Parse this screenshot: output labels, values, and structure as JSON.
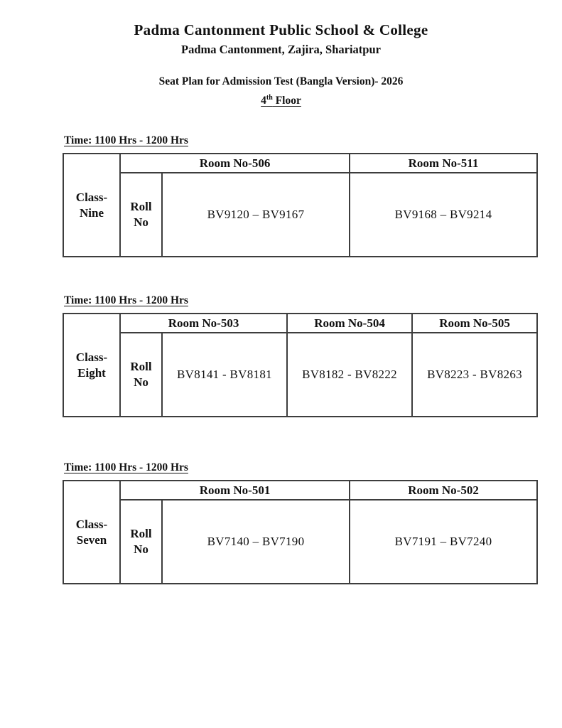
{
  "header": {
    "title": "Padma Cantonment Public School & College",
    "subtitle": "Padma Cantonment, Zajira, Shariatpur",
    "plan_title": "Seat Plan for Admission Test (Bangla Version)- 2026",
    "floor_number": "4",
    "floor_suffix": "th",
    "floor_word": " Floor"
  },
  "sections": [
    {
      "time_label": "Time: 1100 Hrs - 1200 Hrs",
      "class_label": "Class-Nine",
      "roll_label": "Roll No",
      "rooms": [
        "Room No-506",
        "Room No-511"
      ],
      "roll_ranges": [
        "BV9120 – BV9167",
        "BV9168 – BV9214"
      ]
    },
    {
      "time_label": "Time: 1100 Hrs - 1200 Hrs",
      "class_label": "Class-Eight",
      "roll_label": "Roll No",
      "rooms": [
        "Room No-503",
        "Room No-504",
        "Room No-505"
      ],
      "roll_ranges": [
        "BV8141 - BV8181",
        "BV8182 - BV8222",
        "BV8223 - BV8263"
      ]
    },
    {
      "time_label": "Time: 1100 Hrs - 1200 Hrs",
      "class_label": "Class-Seven",
      "roll_label": "Roll No",
      "rooms": [
        "Room No-501",
        "Room No-502"
      ],
      "roll_ranges": [
        "BV7140 – BV7190",
        "BV7191 – BV7240"
      ]
    }
  ],
  "colors": {
    "text": "#111111",
    "table_border": "#3d3d3d",
    "background": "#ffffff"
  }
}
